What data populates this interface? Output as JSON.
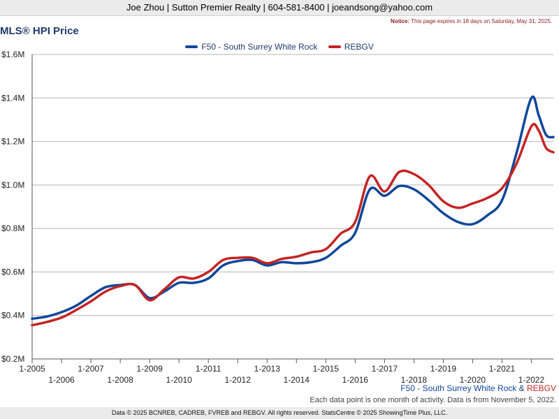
{
  "header": {
    "contact": "Joe Zhou | Sutton Premier Realty | 604-581-8400 | joeandsong@yahoo.com",
    "notice_label": "Notice:",
    "notice_text": "This page expires in 18 days on Saturday, May 31, 2025."
  },
  "footer": {
    "series_blue": "F50 - South Surrey White Rock",
    "ampersand": "&",
    "series_red": "REBGV",
    "data_note": "Each data point is one month of activity. Data is from November 5, 2022.",
    "copyright": "Data © 2025 BCNREB, CADREB, FVREB and REBGV. All rights reserved. StatsCentre © 2025 ShowingTime Plus, LLC."
  },
  "chart_data": {
    "type": "line",
    "title": "MLS® HPI Price",
    "xlabel": "",
    "ylabel": "",
    "ylim": [
      0.2,
      1.6
    ],
    "yticks": [
      0.2,
      0.4,
      0.6,
      0.8,
      1.0,
      1.2,
      1.4,
      1.6
    ],
    "ytick_labels": [
      "$0.2M",
      "$0.4M",
      "$0.6M",
      "$0.8M",
      "$1.0M",
      "$1.2M",
      "$1.4M",
      "$1.6M"
    ],
    "xlim": [
      "2005-01",
      "2022-10"
    ],
    "xtick_labels": [
      "1-2005",
      "1-2006",
      "1-2007",
      "1-2008",
      "1-2009",
      "1-2010",
      "1-2011",
      "1-2012",
      "1-2013",
      "1-2014",
      "1-2015",
      "1-2016",
      "1-2017",
      "1-2018",
      "1-2019",
      "1-2020",
      "1-2021",
      "1-2022"
    ],
    "grid": "horizontal",
    "legend": "top-center",
    "series": [
      {
        "name": "F50 - South Surrey White Rock",
        "color": "#10479a",
        "points": [
          [
            "2005-01",
            0.385
          ],
          [
            "2005-07",
            0.395
          ],
          [
            "2006-01",
            0.415
          ],
          [
            "2006-07",
            0.445
          ],
          [
            "2007-01",
            0.49
          ],
          [
            "2007-07",
            0.53
          ],
          [
            "2008-01",
            0.54
          ],
          [
            "2008-07",
            0.54
          ],
          [
            "2009-01",
            0.48
          ],
          [
            "2009-07",
            0.51
          ],
          [
            "2010-01",
            0.55
          ],
          [
            "2010-07",
            0.55
          ],
          [
            "2011-01",
            0.57
          ],
          [
            "2011-07",
            0.63
          ],
          [
            "2012-01",
            0.65
          ],
          [
            "2012-07",
            0.655
          ],
          [
            "2013-01",
            0.63
          ],
          [
            "2013-07",
            0.645
          ],
          [
            "2014-01",
            0.64
          ],
          [
            "2014-07",
            0.645
          ],
          [
            "2015-01",
            0.665
          ],
          [
            "2015-07",
            0.72
          ],
          [
            "2016-01",
            0.78
          ],
          [
            "2016-07",
            0.98
          ],
          [
            "2017-01",
            0.95
          ],
          [
            "2017-07",
            0.995
          ],
          [
            "2018-01",
            0.98
          ],
          [
            "2018-07",
            0.93
          ],
          [
            "2019-01",
            0.87
          ],
          [
            "2019-07",
            0.83
          ],
          [
            "2020-01",
            0.82
          ],
          [
            "2020-07",
            0.86
          ],
          [
            "2021-01",
            0.93
          ],
          [
            "2021-07",
            1.15
          ],
          [
            "2022-01",
            1.4
          ],
          [
            "2022-04",
            1.32
          ],
          [
            "2022-07",
            1.23
          ],
          [
            "2022-10",
            1.22
          ]
        ]
      },
      {
        "name": "REBGV",
        "color": "#c32424",
        "points": [
          [
            "2005-01",
            0.355
          ],
          [
            "2005-07",
            0.37
          ],
          [
            "2006-01",
            0.39
          ],
          [
            "2006-07",
            0.425
          ],
          [
            "2007-01",
            0.465
          ],
          [
            "2007-07",
            0.51
          ],
          [
            "2008-01",
            0.535
          ],
          [
            "2008-07",
            0.54
          ],
          [
            "2009-01",
            0.47
          ],
          [
            "2009-07",
            0.52
          ],
          [
            "2010-01",
            0.575
          ],
          [
            "2010-07",
            0.57
          ],
          [
            "2011-01",
            0.6
          ],
          [
            "2011-07",
            0.655
          ],
          [
            "2012-01",
            0.665
          ],
          [
            "2012-07",
            0.665
          ],
          [
            "2013-01",
            0.64
          ],
          [
            "2013-07",
            0.66
          ],
          [
            "2014-01",
            0.67
          ],
          [
            "2014-07",
            0.69
          ],
          [
            "2015-01",
            0.705
          ],
          [
            "2015-07",
            0.775
          ],
          [
            "2016-01",
            0.83
          ],
          [
            "2016-07",
            1.04
          ],
          [
            "2017-01",
            0.97
          ],
          [
            "2017-07",
            1.06
          ],
          [
            "2018-01",
            1.05
          ],
          [
            "2018-07",
            1.0
          ],
          [
            "2019-01",
            0.925
          ],
          [
            "2019-07",
            0.895
          ],
          [
            "2020-01",
            0.915
          ],
          [
            "2020-07",
            0.94
          ],
          [
            "2021-01",
            0.985
          ],
          [
            "2021-07",
            1.1
          ],
          [
            "2022-01",
            1.27
          ],
          [
            "2022-04",
            1.25
          ],
          [
            "2022-07",
            1.17
          ],
          [
            "2022-10",
            1.15
          ]
        ]
      }
    ]
  }
}
